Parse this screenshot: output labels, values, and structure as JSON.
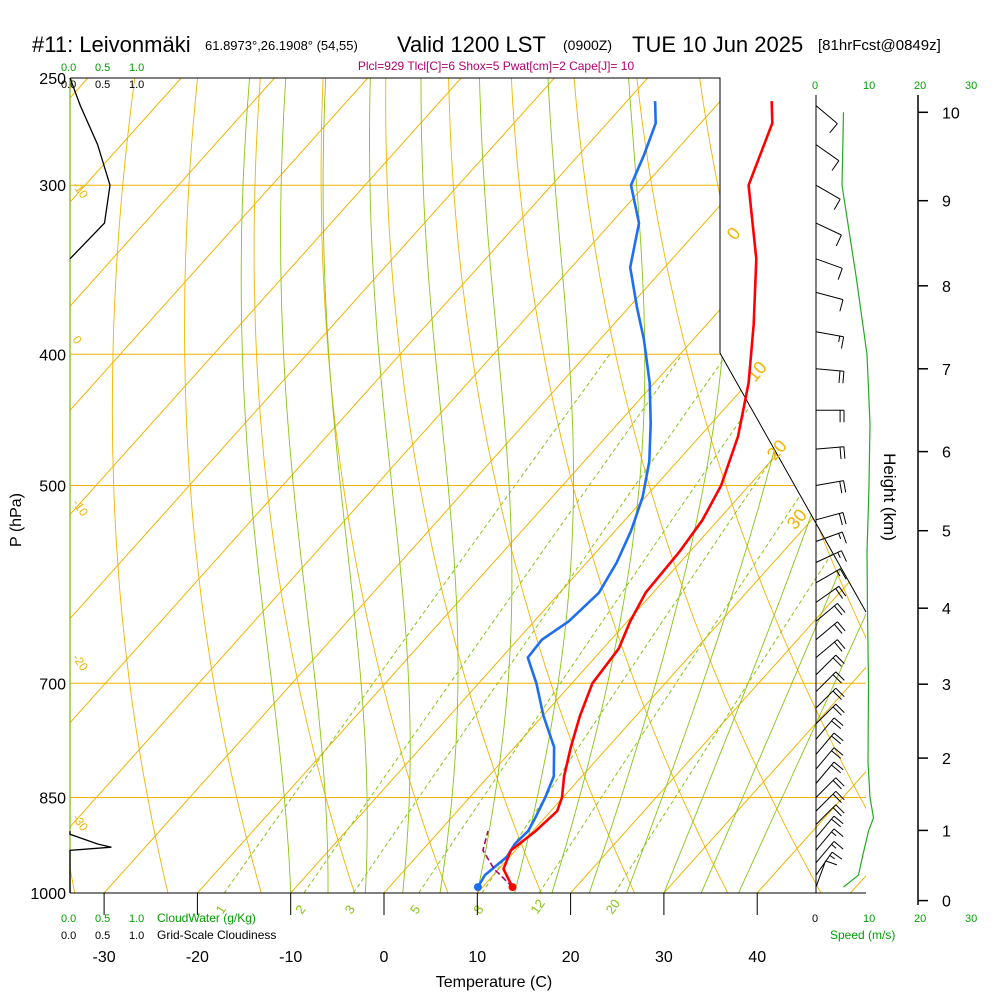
{
  "header": {
    "station": "#11: Leivonmäki",
    "coords": "61.8973°,26.1908° (54,55)",
    "valid": "Valid 1200 LST",
    "zulu": "(0900Z)",
    "date": "TUE 10 Jun 2025",
    "forecast": "[81hrFcst@0849z]",
    "indices": "Plcl=929 Tlcl[C]=6 Shox=5 Pwat[cm]=2 Cape[J]= 10"
  },
  "colors": {
    "temperature": "#ff0000",
    "dewpoint": "#1e6ff0",
    "isobar_isotherm": "#f0b400",
    "dry_adiabat": "#88c414",
    "mixing_ratio": "#88c414",
    "cloud": "#000000",
    "parcel": "#b0006e",
    "wind_speed": "#22aa22",
    "green_label": "#00a000"
  },
  "chart_data": {
    "type": "line",
    "title": "#11: Leivonmäki 61.8973°,26.1908° (54,55) Valid 1200 LST (0900Z) TUE 10 Jun 2025 [81hrFcst@0849z]",
    "subtitle": "Plcl=929 Tlcl[C]=6 Shox=5 Pwat[cm]=2 Cape[J]= 10",
    "xlabel": "Temperature (C)",
    "ylabel": "P (hPa)",
    "y2label": "Height (km)",
    "xlim": [
      -35,
      45
    ],
    "ylim_pressure": [
      1000,
      250
    ],
    "pressure_scale": "log",
    "x_ticks": [
      -30,
      -20,
      -10,
      0,
      10,
      20,
      30,
      40
    ],
    "pressure_ticks": [
      250,
      300,
      400,
      500,
      700,
      850,
      1000
    ],
    "height_ticks": [
      0,
      1,
      2,
      3,
      4,
      5,
      6,
      7,
      8,
      9,
      10
    ],
    "height_tick_pressures": [
      1013,
      899,
      795,
      701,
      616,
      540,
      472,
      410,
      356,
      308,
      265
    ],
    "isotherm_labels": [
      "0",
      "10",
      "20",
      "30"
    ],
    "isotherm_label_pressures": [
      330,
      420,
      480,
      540
    ],
    "cold_isotherm_labels": [
      "-10",
      "0",
      "-10",
      "-20",
      "-30"
    ],
    "cold_isotherm_label_pressures": [
      300,
      390,
      515,
      670,
      880
    ],
    "mixing_ratio_labels": [
      "1",
      "2",
      "3",
      "5",
      "8",
      "12",
      "20"
    ],
    "mixing_ratio_values": [
      1,
      2,
      3,
      5,
      8,
      12,
      20
    ],
    "series": [
      {
        "name": "Temperature",
        "pressure": [
          990,
          960,
          930,
          900,
          870,
          850,
          820,
          780,
          740,
          700,
          660,
          630,
          600,
          560,
          530,
          500,
          460,
          420,
          380,
          340,
          300,
          270,
          260
        ],
        "temperature": [
          13.2,
          10.5,
          9.5,
          10.3,
          10.7,
          9.9,
          8.1,
          6.0,
          4.0,
          2.2,
          1.7,
          0.3,
          -0.8,
          -1.1,
          -1.7,
          -3.0,
          -5.9,
          -9.9,
          -15.0,
          -21.0,
          -28.9,
          -32.3,
          -34.5
        ]
      },
      {
        "name": "Dewpoint",
        "pressure": [
          990,
          970,
          940,
          920,
          900,
          880,
          850,
          820,
          780,
          740,
          700,
          670,
          650,
          630,
          600,
          570,
          540,
          510,
          480,
          450,
          420,
          390,
          370,
          345,
          320,
          300,
          285,
          270,
          260
        ],
        "dewpoint": [
          9.5,
          9.1,
          9.7,
          9.3,
          9.5,
          9.0,
          8.1,
          7.0,
          4.2,
          0.1,
          -3.8,
          -7.2,
          -7.4,
          -6.3,
          -5.8,
          -6.8,
          -8.3,
          -10.3,
          -13.0,
          -16.5,
          -20.5,
          -25.3,
          -29.0,
          -33.7,
          -37.0,
          -41.5,
          -43.0,
          -44.8,
          -47.0
        ]
      },
      {
        "name": "Parcel",
        "pressure": [
          990,
          960,
          930,
          900
        ],
        "temperature": [
          13.2,
          9.5,
          6.5,
          5.2
        ]
      }
    ],
    "cloud_water": {
      "xlabel": "CloudWater (g/Kg)",
      "ticks": [
        "0.0",
        "0.5",
        "1.0"
      ],
      "pressure": [
        1000,
        930,
        925,
        920,
        905,
        900
      ],
      "value": [
        0.0,
        0.0,
        0.6,
        0.4,
        0.0,
        0.0
      ]
    },
    "cloudiness": {
      "xlabel": "Grid-Scale Cloudiness",
      "ticks": [
        "0.0",
        "0.5",
        "1.0"
      ],
      "pressure": [
        340,
        320,
        300,
        280,
        262,
        250
      ],
      "value": [
        0.0,
        0.5,
        0.58,
        0.4,
        0.15,
        0.0
      ]
    },
    "wind_speed": {
      "xlabel": "Speed (m/s)",
      "ticks": [
        "0",
        "10",
        "20",
        "30"
      ],
      "pressure": [
        990,
        970,
        940,
        900,
        880,
        850,
        800,
        700,
        620,
        560,
        500,
        450,
        400,
        350,
        300,
        265
      ],
      "speed": [
        5.5,
        8.5,
        9.3,
        10.5,
        11.5,
        10.8,
        10.4,
        10.5,
        10.3,
        10.2,
        10.6,
        10.8,
        10.2,
        8.0,
        5.2,
        5.5
      ]
    },
    "wind_barbs": {
      "pressure": [
        990,
        970,
        950,
        930,
        910,
        890,
        870,
        850,
        830,
        810,
        790,
        770,
        750,
        730,
        710,
        690,
        670,
        650,
        630,
        610,
        590,
        570,
        550,
        530,
        500,
        470,
        440,
        410,
        385,
        360,
        340,
        320,
        300,
        280,
        262
      ],
      "speed": [
        5.5,
        8.5,
        9.0,
        9.5,
        10.0,
        10.5,
        11.0,
        10.5,
        10.5,
        10.3,
        10.5,
        10.3,
        10.5,
        10.4,
        10.3,
        10.2,
        10.3,
        10.4,
        10.2,
        10.0,
        9.5,
        9.0,
        9.2,
        10.0,
        10.5,
        10.5,
        10.0,
        10.0,
        8.0,
        7.0,
        6.0,
        6.0,
        5.0,
        5.0,
        6.0
      ],
      "direction": [
        200,
        215,
        220,
        220,
        220,
        225,
        225,
        225,
        220,
        220,
        220,
        220,
        225,
        225,
        225,
        225,
        230,
        230,
        230,
        235,
        240,
        245,
        250,
        255,
        260,
        265,
        270,
        275,
        280,
        285,
        290,
        295,
        300,
        305,
        310
      ]
    }
  }
}
